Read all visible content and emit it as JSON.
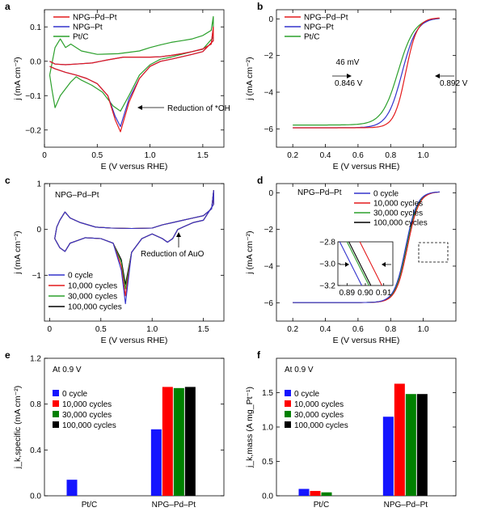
{
  "chart_data": [
    {
      "panel": "a",
      "type": "line",
      "xlabel": "E (V versus RHE)",
      "ylabel": "j (mA cm⁻²)",
      "xlim": [
        0,
        1.7
      ],
      "ylim": [
        -0.25,
        0.15
      ],
      "xticks": [
        0,
        0.5,
        1.0,
        1.5
      ],
      "xtick_labels": [
        "0",
        "0.5",
        "1.0",
        "1.5"
      ],
      "yticks": [
        0.1,
        0.0,
        -0.1,
        -0.2
      ],
      "ytick_labels": [
        "0.1",
        "0.0",
        "−0.1",
        "−0.2"
      ],
      "legend_position": "top-left",
      "annotation": "Reduction of *OH",
      "series": [
        {
          "name": "NPG–Pd–Pt",
          "color": "#e41a1c",
          "upper": [
            [
              0.05,
              0.0
            ],
            [
              0.1,
              -0.008
            ],
            [
              0.2,
              -0.01
            ],
            [
              0.3,
              -0.008
            ],
            [
              0.45,
              -0.005
            ],
            [
              0.6,
              0.004
            ],
            [
              0.75,
              0.012
            ],
            [
              0.9,
              0.012
            ],
            [
              1.0,
              0.012
            ],
            [
              1.1,
              0.013
            ],
            [
              1.2,
              0.017
            ],
            [
              1.3,
              0.022
            ],
            [
              1.4,
              0.028
            ],
            [
              1.5,
              0.036
            ],
            [
              1.58,
              0.05
            ],
            [
              1.6,
              0.1
            ]
          ],
          "lower": [
            [
              1.6,
              0.06
            ],
            [
              1.5,
              0.028
            ],
            [
              1.4,
              0.02
            ],
            [
              1.3,
              0.013
            ],
            [
              1.2,
              0.006
            ],
            [
              1.1,
              0.0
            ],
            [
              1.0,
              -0.015
            ],
            [
              0.9,
              -0.05
            ],
            [
              0.8,
              -0.12
            ],
            [
              0.72,
              -0.205
            ],
            [
              0.67,
              -0.17
            ],
            [
              0.6,
              -0.1
            ],
            [
              0.5,
              -0.065
            ],
            [
              0.4,
              -0.05
            ],
            [
              0.3,
              -0.04
            ],
            [
              0.2,
              -0.032
            ],
            [
              0.1,
              -0.022
            ],
            [
              0.05,
              -0.015
            ]
          ]
        },
        {
          "name": "NPG–Pt",
          "color": "#3333cc",
          "upper": [
            [
              0.05,
              0.0
            ],
            [
              0.1,
              -0.008
            ],
            [
              0.2,
              -0.01
            ],
            [
              0.3,
              -0.008
            ],
            [
              0.45,
              -0.005
            ],
            [
              0.6,
              0.004
            ],
            [
              0.75,
              0.012
            ],
            [
              0.9,
              0.012
            ],
            [
              1.0,
              0.012
            ],
            [
              1.1,
              0.013
            ],
            [
              1.2,
              0.017
            ],
            [
              1.3,
              0.022
            ],
            [
              1.4,
              0.028
            ],
            [
              1.5,
              0.036
            ],
            [
              1.58,
              0.05
            ],
            [
              1.6,
              0.1
            ]
          ],
          "lower": [
            [
              1.6,
              0.06
            ],
            [
              1.5,
              0.028
            ],
            [
              1.4,
              0.02
            ],
            [
              1.3,
              0.013
            ],
            [
              1.2,
              0.006
            ],
            [
              1.1,
              0.0
            ],
            [
              1.0,
              -0.015
            ],
            [
              0.9,
              -0.05
            ],
            [
              0.8,
              -0.11
            ],
            [
              0.72,
              -0.19
            ],
            [
              0.67,
              -0.16
            ],
            [
              0.6,
              -0.1
            ],
            [
              0.5,
              -0.065
            ],
            [
              0.4,
              -0.05
            ],
            [
              0.3,
              -0.04
            ],
            [
              0.2,
              -0.032
            ],
            [
              0.1,
              -0.022
            ],
            [
              0.05,
              -0.015
            ]
          ]
        },
        {
          "name": "Pt/C",
          "color": "#2ca02c",
          "upper": [
            [
              0.05,
              -0.04
            ],
            [
              0.1,
              0.04
            ],
            [
              0.15,
              0.065
            ],
            [
              0.2,
              0.04
            ],
            [
              0.25,
              0.05
            ],
            [
              0.35,
              0.03
            ],
            [
              0.5,
              0.02
            ],
            [
              0.7,
              0.022
            ],
            [
              0.9,
              0.03
            ],
            [
              1.0,
              0.04
            ],
            [
              1.1,
              0.048
            ],
            [
              1.2,
              0.055
            ],
            [
              1.3,
              0.06
            ],
            [
              1.4,
              0.065
            ],
            [
              1.5,
              0.075
            ],
            [
              1.58,
              0.09
            ],
            [
              1.6,
              0.13
            ]
          ],
          "lower": [
            [
              1.6,
              0.07
            ],
            [
              1.5,
              0.035
            ],
            [
              1.4,
              0.028
            ],
            [
              1.3,
              0.02
            ],
            [
              1.2,
              0.012
            ],
            [
              1.1,
              0.006
            ],
            [
              1.0,
              -0.01
            ],
            [
              0.9,
              -0.04
            ],
            [
              0.8,
              -0.1
            ],
            [
              0.72,
              -0.145
            ],
            [
              0.65,
              -0.13
            ],
            [
              0.55,
              -0.09
            ],
            [
              0.45,
              -0.07
            ],
            [
              0.35,
              -0.055
            ],
            [
              0.3,
              -0.045
            ],
            [
              0.25,
              -0.06
            ],
            [
              0.2,
              -0.08
            ],
            [
              0.15,
              -0.1
            ],
            [
              0.1,
              -0.135
            ],
            [
              0.07,
              -0.08
            ],
            [
              0.05,
              -0.04
            ]
          ]
        }
      ]
    },
    {
      "panel": "b",
      "type": "line",
      "xlabel": "E (V versus RHE)",
      "ylabel": "j (mA cm⁻²)",
      "xlim": [
        0.1,
        1.2
      ],
      "ylim": [
        -7,
        0.5
      ],
      "xticks": [
        0.2,
        0.4,
        0.6,
        0.8,
        1.0
      ],
      "xtick_labels": [
        "0.2",
        "0.4",
        "0.6",
        "0.8",
        "1.0"
      ],
      "yticks": [
        0,
        -2,
        -4,
        -6
      ],
      "ytick_labels": [
        "0",
        "−2",
        "−4",
        "−6"
      ],
      "legend_position": "top-left",
      "annotations": [
        "46 mV",
        "0.846 V",
        "0.892 V"
      ],
      "half_wave_potentials_V": {
        "Pt/C": 0.846,
        "NPG–Pd–Pt": 0.892
      },
      "series": [
        {
          "name": "NPG–Pd–Pt",
          "color": "#e41a1c",
          "e_half": 0.892,
          "j_lim": -6.0,
          "width": 0.035
        },
        {
          "name": "NPG–Pt",
          "color": "#3333cc",
          "e_half": 0.87,
          "j_lim": -6.0,
          "width": 0.045
        },
        {
          "name": "Pt/C",
          "color": "#2ca02c",
          "e_half": 0.846,
          "j_lim": -5.85,
          "width": 0.05
        }
      ]
    },
    {
      "panel": "c",
      "type": "line",
      "title": "NPG–Pd–Pt",
      "xlabel": "E (V versus RHE)",
      "ylabel": "j (mA cm⁻²)",
      "xlim": [
        -0.05,
        1.7
      ],
      "ylim": [
        -2.0,
        1.0
      ],
      "xticks": [
        0,
        0.5,
        1.0,
        1.5
      ],
      "xtick_labels": [
        "0",
        "0.5",
        "1.0",
        "1.5"
      ],
      "yticks": [
        1,
        0,
        -1
      ],
      "ytick_labels": [
        "1",
        "0",
        "−1"
      ],
      "legend_position": "bottom-left",
      "annotation": "Reduction of AuO",
      "series": [
        {
          "name": "0 cycle",
          "color": "#3333cc",
          "peak": -1.62
        },
        {
          "name": "10,000 cycles",
          "color": "#e41a1c",
          "peak": -1.45
        },
        {
          "name": "30,000 cycles",
          "color": "#2ca02c",
          "peak": -1.3
        },
        {
          "name": "100,000 cycles",
          "color": "#000000",
          "peak": -1.2
        }
      ]
    },
    {
      "panel": "d",
      "type": "line",
      "title": "NPG–Pd–Pt",
      "xlabel": "E (V versus RHE)",
      "ylabel": "j (mA cm⁻²)",
      "xlim": [
        0.1,
        1.2
      ],
      "ylim": [
        -7,
        0.5
      ],
      "xticks": [
        0.2,
        0.4,
        0.6,
        0.8,
        1.0
      ],
      "xtick_labels": [
        "0.2",
        "0.4",
        "0.6",
        "0.8",
        "1.0"
      ],
      "yticks": [
        0,
        -2,
        -4,
        -6
      ],
      "ytick_labels": [
        "0",
        "−2",
        "−4",
        "−6"
      ],
      "legend_position": "top-right",
      "inset": {
        "xlim": [
          0.885,
          0.915
        ],
        "ylim": [
          -3.2,
          -2.8
        ],
        "xtick_labels": [
          "0.89",
          "0.90",
          "0.91"
        ],
        "ytick_labels": [
          "−2.8",
          "−3.0",
          "−3.2"
        ]
      },
      "series": [
        {
          "name": "0 cycle",
          "color": "#3333cc",
          "e_half": 0.892
        },
        {
          "name": "10,000 cycles",
          "color": "#e41a1c",
          "e_half": 0.903
        },
        {
          "name": "30,000 cycles",
          "color": "#2ca02c",
          "e_half": 0.896
        },
        {
          "name": "100,000 cycles",
          "color": "#000000",
          "e_half": 0.897
        }
      ]
    },
    {
      "panel": "e",
      "type": "bar",
      "annotation": "At 0.9 V",
      "xlabel": "",
      "ylabel": "j_k,specific (mA cm⁻²)",
      "categories": [
        "Pt/C",
        "NPG–Pd–Pt"
      ],
      "ylim": [
        0,
        1.2
      ],
      "yticks": [
        0.0,
        0.4,
        0.8,
        1.2
      ],
      "ytick_labels": [
        "0.0",
        "0.4",
        "0.8",
        "1.2"
      ],
      "legend_position": "top-left",
      "series": [
        {
          "name": "0 cycle",
          "color": "#1414ff",
          "values": [
            0.14,
            0.58
          ]
        },
        {
          "name": "10,000 cycles",
          "color": "#ff0000",
          "values": [
            null,
            0.95
          ]
        },
        {
          "name": "30,000 cycles",
          "color": "#008000",
          "values": [
            null,
            0.94
          ]
        },
        {
          "name": "100,000 cycles",
          "color": "#000000",
          "values": [
            null,
            0.95
          ]
        }
      ]
    },
    {
      "panel": "f",
      "type": "bar",
      "annotation": "At 0.9 V",
      "xlabel": "",
      "ylabel": "j_k,mass (A mg_Pt⁻¹)",
      "categories": [
        "Pt/C",
        "NPG–Pd–Pt"
      ],
      "ylim": [
        0,
        2.0
      ],
      "yticks": [
        0.0,
        0.5,
        1.0,
        1.5
      ],
      "ytick_labels": [
        "0.0",
        "0.5",
        "1.0",
        "1.5"
      ],
      "legend_position": "top-left",
      "series": [
        {
          "name": "0 cycle",
          "color": "#1414ff",
          "values": [
            0.1,
            1.15
          ]
        },
        {
          "name": "10,000 cycles",
          "color": "#ff0000",
          "values": [
            0.07,
            1.63
          ]
        },
        {
          "name": "30,000 cycles",
          "color": "#008000",
          "values": [
            0.05,
            1.48
          ]
        },
        {
          "name": "100,000 cycles",
          "color": "#000000",
          "values": [
            null,
            1.48
          ]
        }
      ]
    }
  ],
  "panel_labels": [
    "a",
    "b",
    "c",
    "d",
    "e",
    "f"
  ]
}
